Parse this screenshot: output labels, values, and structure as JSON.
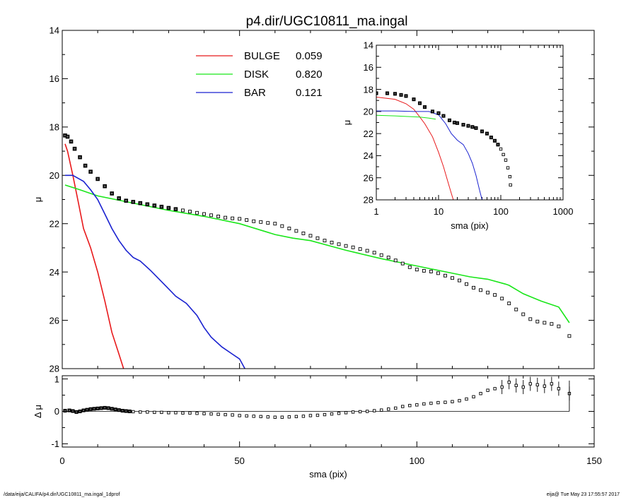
{
  "title": "p4.dir/UGC10811_ma.ingal",
  "footer": {
    "path": "/data/eija/CALIFA/p4.dir/UGC10811_ma.ingal_1dprof",
    "stamp": "eija@  Tue May 23 17:55:57 2017"
  },
  "chart_data": [
    {
      "panel": "main",
      "type": "line",
      "title": "p4.dir/UGC10811_ma.ingal",
      "xlabel": "sma (pix)",
      "ylabel": "μ",
      "xlim": [
        0,
        150
      ],
      "ylim": [
        28,
        14
      ],
      "y_inverted": true,
      "x_ticks": [
        "0",
        "50",
        "100",
        "150"
      ],
      "y_ticks": [
        "14",
        "16",
        "18",
        "20",
        "22",
        "24",
        "26",
        "28"
      ],
      "legend_position": "top-center",
      "legend": [
        {
          "label": "BULGE",
          "fraction": "0.059",
          "color": "#e8191b"
        },
        {
          "label": "DISK",
          "fraction": "0.820",
          "color": "#19e619"
        },
        {
          "label": "BAR",
          "fraction": "0.121",
          "color": "#1a22d0"
        }
      ],
      "series": [
        {
          "name": "BULGE",
          "style": "line",
          "color": "#e8191b",
          "x": [
            0.8,
            1.5,
            3,
            4.5,
            6,
            8,
            10,
            12,
            14,
            16,
            17.3
          ],
          "y": [
            18.7,
            19.0,
            20.0,
            21.1,
            22.2,
            23.0,
            24.0,
            25.2,
            26.5,
            27.4,
            28.0
          ]
        },
        {
          "name": "DISK",
          "style": "line",
          "color": "#19e619",
          "x": [
            0.8,
            5,
            10,
            15,
            20,
            30,
            40,
            50,
            60,
            65,
            70,
            80,
            90,
            100,
            110,
            115,
            120,
            125,
            126,
            130,
            135,
            140,
            143
          ],
          "y": [
            20.4,
            20.6,
            20.85,
            21.0,
            21.15,
            21.45,
            21.7,
            22.0,
            22.45,
            22.6,
            22.7,
            23.1,
            23.45,
            23.75,
            24.05,
            24.2,
            24.3,
            24.5,
            24.55,
            24.9,
            25.2,
            25.45,
            26.1
          ]
        },
        {
          "name": "BAR",
          "style": "line",
          "color": "#1a22d0",
          "x": [
            0.8,
            3,
            6,
            8,
            10,
            12,
            14,
            16,
            18,
            20,
            22,
            25,
            28,
            30,
            32,
            35,
            38,
            40,
            42,
            45,
            48,
            50,
            51.5
          ],
          "y": [
            20.0,
            20.0,
            20.25,
            20.6,
            21.0,
            21.6,
            22.2,
            22.7,
            23.1,
            23.4,
            23.55,
            23.95,
            24.4,
            24.7,
            25.0,
            25.3,
            25.8,
            26.3,
            26.7,
            27.1,
            27.4,
            27.6,
            28.0
          ]
        },
        {
          "name": "data",
          "style": "points",
          "color": "#000000",
          "x": [
            0.8,
            1.5,
            2.5,
            3.5,
            5,
            6.5,
            8,
            10,
            12,
            14,
            16,
            18,
            20,
            22,
            24,
            26,
            28,
            30,
            32,
            34,
            36,
            38,
            40,
            42,
            44,
            46,
            48,
            50,
            52,
            54,
            56,
            58,
            60,
            62,
            64,
            66,
            68,
            70,
            72,
            74,
            76,
            78,
            80,
            82,
            84,
            86,
            88,
            90,
            92,
            94,
            96,
            98,
            100,
            102,
            104,
            106,
            108,
            110,
            112,
            114,
            116,
            118,
            120,
            122,
            124,
            126,
            128,
            130,
            132,
            134,
            136,
            138,
            140,
            143
          ],
          "y": [
            18.35,
            18.4,
            18.6,
            18.9,
            19.25,
            19.6,
            19.85,
            20.15,
            20.45,
            20.75,
            20.95,
            21.05,
            21.1,
            21.15,
            21.2,
            21.25,
            21.3,
            21.35,
            21.4,
            21.45,
            21.5,
            21.55,
            21.6,
            21.65,
            21.7,
            21.75,
            21.78,
            21.8,
            21.85,
            21.9,
            21.93,
            21.97,
            22.0,
            22.1,
            22.2,
            22.3,
            22.4,
            22.5,
            22.6,
            22.7,
            22.78,
            22.85,
            22.92,
            22.98,
            23.05,
            23.12,
            23.2,
            23.3,
            23.4,
            23.52,
            23.65,
            23.8,
            23.9,
            23.95,
            23.98,
            24.05,
            24.15,
            24.25,
            24.35,
            24.5,
            24.65,
            24.75,
            24.85,
            24.95,
            25.1,
            25.3,
            25.55,
            25.75,
            25.95,
            26.05,
            26.1,
            26.15,
            26.25,
            26.65
          ]
        }
      ]
    },
    {
      "panel": "inset",
      "type": "line",
      "xlabel": "sma (pix)",
      "ylabel": "μ",
      "x_scale": "log",
      "xlim": [
        1,
        1000
      ],
      "ylim": [
        28,
        14
      ],
      "y_inverted": true,
      "x_ticks": [
        "1",
        "10",
        "100",
        "1000"
      ],
      "y_ticks": [
        "14",
        "16",
        "18",
        "20",
        "22",
        "24",
        "26",
        "28"
      ],
      "series": [
        {
          "name": "BULGE",
          "style": "line",
          "color": "#e8191b",
          "x": [
            1,
            2,
            3,
            4,
            5,
            6,
            8,
            10,
            12,
            14,
            16,
            17.3
          ],
          "y": [
            18.7,
            18.9,
            19.3,
            19.8,
            20.5,
            21.1,
            22.3,
            23.7,
            25.0,
            26.3,
            27.4,
            28.0
          ]
        },
        {
          "name": "DISK",
          "style": "line",
          "color": "#19e619",
          "x": [
            1,
            2,
            3,
            5,
            7,
            9
          ],
          "y": [
            20.35,
            20.4,
            20.45,
            20.5,
            20.6,
            20.7
          ]
        },
        {
          "name": "BAR",
          "style": "line",
          "color": "#1a22d0",
          "x": [
            1,
            2,
            4,
            7,
            10,
            13,
            16,
            20,
            25,
            30,
            35,
            40,
            45,
            50
          ],
          "y": [
            19.95,
            19.95,
            20.0,
            20.0,
            20.3,
            21.1,
            22.0,
            22.6,
            23.0,
            23.8,
            24.7,
            25.8,
            27.0,
            28.0
          ]
        },
        {
          "name": "data",
          "style": "points",
          "color": "#000000",
          "x": [
            1,
            1.5,
            2,
            2.5,
            3,
            4,
            5,
            6,
            8,
            10,
            12,
            15,
            18,
            20,
            25,
            30,
            35,
            40,
            50,
            60,
            70,
            80,
            90,
            100,
            110,
            120,
            130,
            140,
            143
          ],
          "y": [
            18.35,
            18.35,
            18.4,
            18.5,
            18.6,
            18.9,
            19.25,
            19.6,
            20.0,
            20.15,
            20.4,
            20.8,
            21.0,
            21.05,
            21.2,
            21.3,
            21.4,
            21.5,
            21.8,
            22.0,
            22.35,
            22.65,
            23.0,
            23.4,
            23.9,
            24.4,
            25.1,
            25.9,
            26.65
          ]
        }
      ]
    },
    {
      "panel": "residual",
      "type": "scatter",
      "xlabel": "sma (pix)",
      "ylabel": "Δ μ",
      "xlim": [
        0,
        150
      ],
      "ylim": [
        -1.1,
        1.1
      ],
      "y_ticks": [
        "1",
        "0",
        "-1"
      ],
      "series": [
        {
          "name": "residual",
          "style": "points",
          "color": "#000000",
          "x": [
            0.8,
            2,
            3,
            4,
            5,
            6,
            7,
            8,
            9,
            10,
            11,
            12,
            13,
            14,
            15,
            16,
            17,
            18,
            19,
            20,
            22,
            24,
            26,
            28,
            30,
            32,
            34,
            36,
            38,
            40,
            42,
            44,
            46,
            48,
            50,
            52,
            54,
            56,
            58,
            60,
            62,
            64,
            66,
            68,
            70,
            72,
            74,
            76,
            78,
            80,
            82,
            84,
            86,
            88,
            90,
            92,
            94,
            96,
            98,
            100,
            102,
            104,
            106,
            108,
            110,
            112,
            114,
            116,
            118,
            120,
            122,
            124,
            126,
            128,
            130,
            132,
            134,
            136,
            138,
            140,
            143
          ],
          "y": [
            0.02,
            0.03,
            0.01,
            -0.02,
            0.0,
            0.03,
            0.05,
            0.07,
            0.08,
            0.09,
            0.1,
            0.11,
            0.1,
            0.08,
            0.06,
            0.04,
            0.02,
            0.01,
            0.0,
            -0.01,
            -0.02,
            -0.02,
            -0.03,
            -0.03,
            -0.04,
            -0.04,
            -0.05,
            -0.05,
            -0.06,
            -0.07,
            -0.08,
            -0.09,
            -0.1,
            -0.11,
            -0.13,
            -0.14,
            -0.15,
            -0.16,
            -0.17,
            -0.18,
            -0.18,
            -0.17,
            -0.16,
            -0.15,
            -0.13,
            -0.12,
            -0.1,
            -0.08,
            -0.06,
            -0.04,
            -0.02,
            -0.01,
            0.0,
            0.02,
            0.04,
            0.07,
            0.1,
            0.15,
            0.18,
            0.2,
            0.23,
            0.25,
            0.27,
            0.28,
            0.3,
            0.33,
            0.38,
            0.45,
            0.55,
            0.65,
            0.7,
            0.75,
            0.9,
            0.8,
            0.75,
            0.85,
            0.82,
            0.78,
            0.85,
            0.7,
            0.55
          ]
        }
      ]
    }
  ]
}
